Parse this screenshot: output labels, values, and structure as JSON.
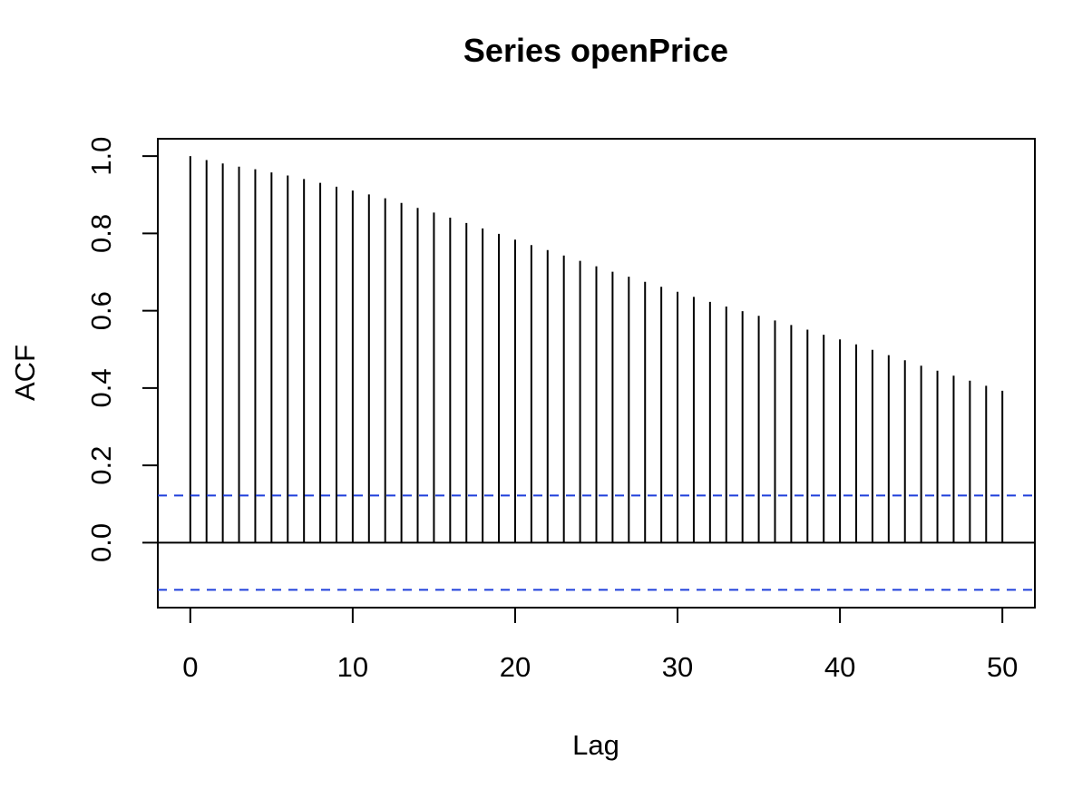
{
  "chart_data": {
    "type": "bar",
    "title": "Series  openPrice",
    "xlabel": "Lag",
    "ylabel": "ACF",
    "x": [
      0,
      1,
      2,
      3,
      4,
      5,
      6,
      7,
      8,
      9,
      10,
      11,
      12,
      13,
      14,
      15,
      16,
      17,
      18,
      19,
      20,
      21,
      22,
      23,
      24,
      25,
      26,
      27,
      28,
      29,
      30,
      31,
      32,
      33,
      34,
      35,
      36,
      37,
      38,
      39,
      40,
      41,
      42,
      43,
      44,
      45,
      46,
      47,
      48,
      49,
      50
    ],
    "values": [
      1.0,
      0.99,
      0.981,
      0.973,
      0.966,
      0.958,
      0.95,
      0.941,
      0.931,
      0.921,
      0.911,
      0.901,
      0.891,
      0.879,
      0.866,
      0.854,
      0.841,
      0.827,
      0.813,
      0.799,
      0.784,
      0.77,
      0.757,
      0.743,
      0.729,
      0.715,
      0.701,
      0.688,
      0.675,
      0.662,
      0.649,
      0.636,
      0.623,
      0.611,
      0.599,
      0.587,
      0.575,
      0.563,
      0.551,
      0.538,
      0.526,
      0.513,
      0.499,
      0.485,
      0.472,
      0.458,
      0.445,
      0.432,
      0.419,
      0.406,
      0.393
    ],
    "x_ticks": [
      0,
      10,
      20,
      30,
      40,
      50
    ],
    "y_ticks": [
      0.0,
      0.2,
      0.4,
      0.6,
      0.8,
      1.0
    ],
    "x_tick_labels": [
      "0",
      "10",
      "20",
      "30",
      "40",
      "50"
    ],
    "y_tick_labels": [
      "0.0",
      "0.2",
      "0.4",
      "0.6",
      "0.8",
      "1.0"
    ],
    "xlim": [
      -2,
      52
    ],
    "ylim": [
      -0.168,
      1.045
    ],
    "confidence_bound": 0.122,
    "zero_line": 0.0,
    "grid": false,
    "legend": "none",
    "colors": {
      "lines": "#000000",
      "confidence": "#1f3fdb",
      "frame": "#000000"
    }
  }
}
